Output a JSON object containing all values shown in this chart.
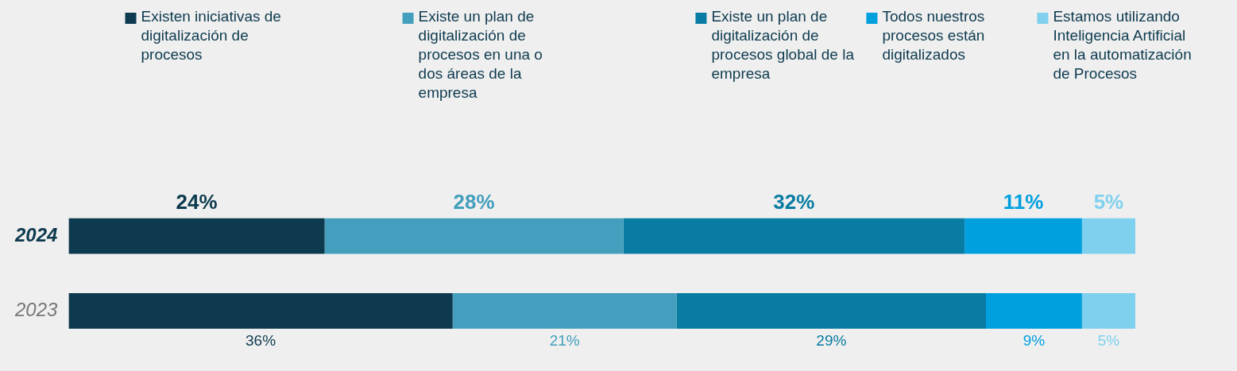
{
  "chart_data": {
    "type": "bar",
    "orientation": "horizontal",
    "stacked": true,
    "categories": [
      "2024",
      "2023"
    ],
    "xlim": [
      0,
      100
    ],
    "tick_labels": "y",
    "legend": "top",
    "grid": false,
    "series": [
      {
        "name": "Existen iniciativas de digitalización de procesos",
        "color": "#0d3a4e",
        "values": [
          24,
          36
        ],
        "value_labels": [
          "24%",
          "36%"
        ]
      },
      {
        "name": "Existe un plan de digitalización de procesos en una o dos áreas de la empresa",
        "color": "#439fbd",
        "values": [
          28,
          21
        ],
        "value_labels": [
          "28%",
          "21%"
        ]
      },
      {
        "name": "Existe un plan de digitalización de procesos global de la empresa",
        "color": "#087ca3",
        "values": [
          32,
          29
        ],
        "value_labels": [
          "32%",
          "29%"
        ]
      },
      {
        "name": "Todos nuestros procesos están digitalizados",
        "color": "#00a0df",
        "values": [
          11,
          9
        ],
        "value_labels": [
          "11%",
          "9%"
        ]
      },
      {
        "name": "Estamos utilizando Inteligencia Artificial en la automatización de Procesos",
        "color": "#7fd0ef",
        "values": [
          5,
          5
        ],
        "value_labels": [
          "5%",
          "5%"
        ]
      }
    ]
  }
}
